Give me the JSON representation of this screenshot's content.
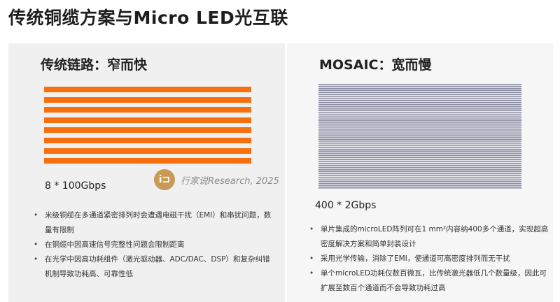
{
  "title": "传统铜缆方案与Micro LED光互联",
  "left": {
    "heading": "传统链路：窄而快",
    "rate": "8 * 100Gbps",
    "bar_color": "#f7700f",
    "bar_count": 8,
    "bullets": [
      "米级铜缆在多通道紧密排列时会遭遇电磁干扰（EMI）和串扰问题，数量有限制",
      "在铜缆中因高速信号完整性问题会限制距离",
      "在光学中因高功耗组件（激光驱动器、ADC/DAC、DSP）和复杂纠错机制导致功耗高、可靠性低"
    ]
  },
  "right": {
    "heading": "MOSAIC：宽而慢",
    "rate": "400 * 2Gbps",
    "line_color": "#8e8ea4",
    "bullets": [
      "单片集成的microLED阵列可在1 mm²内容纳400多个通道，实现超高密度解决方案和简单封装设计",
      "采用光学传输，消除了EMI，使通道可高密度排列而无干扰",
      "单个microLED功耗仅数百微瓦，比传统激光器低几个数量级，因此可扩展至数百个通道而不会导致功耗过高"
    ]
  },
  "watermark": {
    "logo": "i⊐",
    "text": "行家说Research, 2025"
  }
}
